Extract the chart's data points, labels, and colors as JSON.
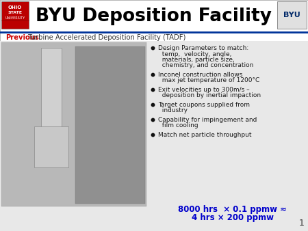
{
  "title": "BYU Deposition Facility",
  "subtitle_red": "Previous",
  "subtitle_rest": " Turbine Accelerated Deposition Facility (TADF)",
  "bullet_points": [
    "Design Parameters to match:\n  temp,  velocity, angle,\n  materials, particle size,\n  chemistry, and concentration",
    "Inconel construction allows\n  max jet temperature of 1200°C",
    "Exit velocities up to 300m/s –\n  deposition by inertial impaction",
    "Target coupons supplied from\n  industry",
    "Capability for impingement and\n  film cooling",
    "Match net particle throughput"
  ],
  "bottom_text_line1": "8000 hrs  × 0.1 ppmw ≈",
  "bottom_text_line2": "4 hrs × 200 ppmw",
  "page_number": "1",
  "title_color": "#000000",
  "subtitle_red_color": "#cc0000",
  "subtitle_rest_color": "#333333",
  "bullet_color": "#1a1a1a",
  "bottom_text_color": "#0000cc",
  "header_line_color": "#003399",
  "slide_bg": "#ffffff",
  "content_bg": "#e8e8e8",
  "ohio_red": "#bb0000",
  "byu_blue": "#002868"
}
